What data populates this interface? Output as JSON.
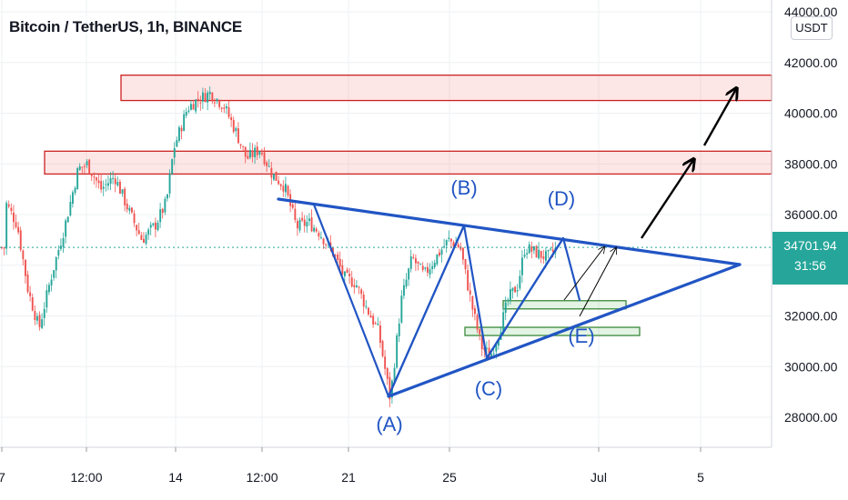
{
  "header": {
    "title": "Bitcoin / TetherUS, 1h, BINANCE",
    "unit_button": "USDT"
  },
  "last_price": {
    "value": "34701.94",
    "countdown": "31:56",
    "color": "#26a69a"
  },
  "colors": {
    "pattern": "#2155c4",
    "arrow": "#000000",
    "resistance": "#cc2222",
    "support": "#3a8a3a",
    "up": "#26a69a",
    "down": "#ef5350"
  },
  "chart_data": {
    "type": "candlestick",
    "symbol": "BTC/USDT",
    "timeframe": "1h",
    "y_axis": {
      "min": 26500,
      "max": 44000,
      "ticks": [
        28000,
        30000,
        32000,
        34000,
        36000,
        38000,
        40000,
        42000,
        44000
      ],
      "tick_labels": [
        "28000.00",
        "30000.00",
        "32000.00",
        "34000.00",
        "36000.00",
        "38000.00",
        "40000.00",
        "42000.00",
        "44000.00"
      ]
    },
    "x_axis": {
      "tick_labels": [
        "7",
        "12:00",
        "14",
        "12:00",
        "21",
        "25",
        "Jul",
        "5"
      ]
    },
    "price_path": [
      [
        5,
        36500
      ],
      [
        18,
        35600
      ],
      [
        30,
        33000
      ],
      [
        42,
        31500
      ],
      [
        55,
        33500
      ],
      [
        70,
        35500
      ],
      [
        85,
        37800
      ],
      [
        95,
        38000
      ],
      [
        110,
        37000
      ],
      [
        125,
        37500
      ],
      [
        140,
        36200
      ],
      [
        155,
        35000
      ],
      [
        170,
        35600
      ],
      [
        182,
        36500
      ],
      [
        190,
        38600
      ],
      [
        205,
        40200
      ],
      [
        215,
        40500
      ],
      [
        230,
        40800
      ],
      [
        245,
        40300
      ],
      [
        258,
        39300
      ],
      [
        270,
        38200
      ],
      [
        285,
        38600
      ],
      [
        298,
        37600
      ],
      [
        312,
        37100
      ],
      [
        325,
        35500
      ],
      [
        338,
        35700
      ],
      [
        350,
        35300
      ],
      [
        365,
        34500
      ],
      [
        378,
        33500
      ],
      [
        390,
        33300
      ],
      [
        402,
        32300
      ],
      [
        415,
        31400
      ],
      [
        428,
        28700
      ],
      [
        440,
        32600
      ],
      [
        452,
        34300
      ],
      [
        465,
        33600
      ],
      [
        478,
        34300
      ],
      [
        492,
        35000
      ],
      [
        505,
        34700
      ],
      [
        517,
        32500
      ],
      [
        528,
        30800
      ],
      [
        538,
        30400
      ],
      [
        548,
        31400
      ],
      [
        558,
        32700
      ],
      [
        568,
        33200
      ],
      [
        576,
        34700
      ],
      [
        588,
        34500
      ],
      [
        600,
        34300
      ],
      [
        612,
        34700
      ]
    ],
    "resistance_zones": [
      {
        "from": 40500,
        "to": 41500
      },
      {
        "from": 37600,
        "to": 38500
      }
    ],
    "support_zones": [
      {
        "from": 32400,
        "to": 32600
      },
      {
        "from": 31350,
        "to": 31550
      }
    ],
    "annotations": {
      "wave_labels": [
        "(A)",
        "(B)",
        "(C)",
        "(D)",
        "(E)"
      ],
      "wave_prices": [
        28750,
        35300,
        30300,
        34750,
        32500
      ]
    }
  }
}
